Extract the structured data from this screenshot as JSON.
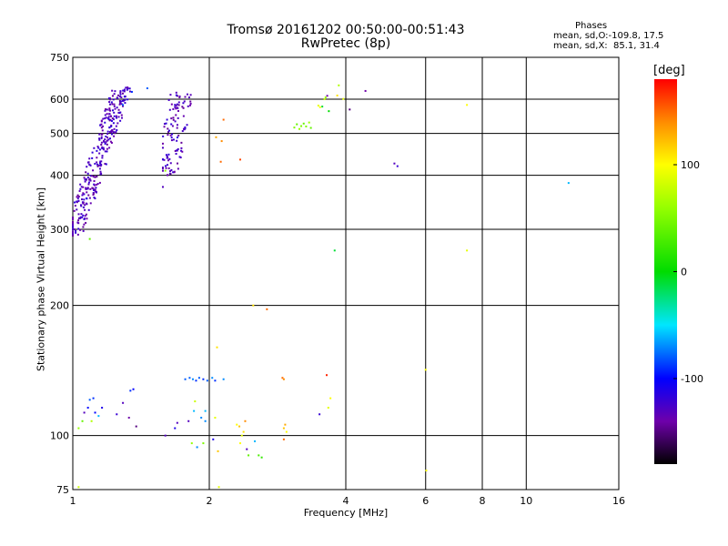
{
  "header": {
    "title_line1": "Tromsø 20161202 00:50:00-00:51:43",
    "title_line2": "RwPretec (8p)",
    "stats_title": "Phases",
    "stats_o": "mean, sd,O:-109.8, 17.5",
    "stats_x": "mean, sd,X:  85.1, 31.4"
  },
  "chart_data": {
    "type": "scatter",
    "xlabel": "Frequency [MHz]",
    "ylabel": "Stationary phase Virtual Height [km]",
    "xscale": "log",
    "yscale": "log",
    "xlim": [
      1,
      16
    ],
    "ylim": [
      75,
      750
    ],
    "xticks": [
      1,
      2,
      4,
      6,
      8,
      10,
      16
    ],
    "yticks": [
      75,
      100,
      200,
      300,
      400,
      500,
      600,
      750
    ],
    "grid": true,
    "colorbar": {
      "label": "[deg]",
      "range": [
        -180,
        180
      ],
      "ticks": [
        100,
        0,
        -100
      ],
      "position": "right"
    },
    "points": [
      {
        "x": 1.03,
        "y": 76,
        "phase": 80
      },
      {
        "x": 1.03,
        "y": 104,
        "phase": 60
      },
      {
        "x": 1.05,
        "y": 108,
        "phase": 40
      },
      {
        "x": 1.06,
        "y": 113,
        "phase": -130
      },
      {
        "x": 1.08,
        "y": 116,
        "phase": -100
      },
      {
        "x": 1.09,
        "y": 121,
        "phase": -80
      },
      {
        "x": 1.11,
        "y": 122,
        "phase": -90
      },
      {
        "x": 1.12,
        "y": 113,
        "phase": -100
      },
      {
        "x": 1.14,
        "y": 111,
        "phase": -60
      },
      {
        "x": 1.16,
        "y": 116,
        "phase": -110
      },
      {
        "x": 1.1,
        "y": 108,
        "phase": 70
      },
      {
        "x": 1.25,
        "y": 112,
        "phase": -120
      },
      {
        "x": 1.29,
        "y": 119,
        "phase": -130
      },
      {
        "x": 1.34,
        "y": 127,
        "phase": -90
      },
      {
        "x": 1.36,
        "y": 128,
        "phase": -100
      },
      {
        "x": 1.33,
        "y": 110,
        "phase": -140
      },
      {
        "x": 1.38,
        "y": 105,
        "phase": -150
      },
      {
        "x": 1.09,
        "y": 285,
        "phase": 40
      },
      {
        "x": 1.29,
        "y": 582,
        "phase": -80
      },
      {
        "x": 1.35,
        "y": 624,
        "phase": -90
      },
      {
        "x": 1.58,
        "y": 376,
        "phase": -130
      },
      {
        "x": 1.6,
        "y": 410,
        "phase": 60
      },
      {
        "x": 1.6,
        "y": 100,
        "phase": -130
      },
      {
        "x": 1.68,
        "y": 104,
        "phase": -110
      },
      {
        "x": 1.7,
        "y": 107,
        "phase": -130
      },
      {
        "x": 1.77,
        "y": 135,
        "phase": -80
      },
      {
        "x": 1.81,
        "y": 136,
        "phase": -80
      },
      {
        "x": 1.84,
        "y": 135,
        "phase": -70
      },
      {
        "x": 1.87,
        "y": 134,
        "phase": -90
      },
      {
        "x": 1.9,
        "y": 136,
        "phase": -80
      },
      {
        "x": 1.94,
        "y": 135,
        "phase": -90
      },
      {
        "x": 1.98,
        "y": 134,
        "phase": -80
      },
      {
        "x": 2.03,
        "y": 136,
        "phase": -70
      },
      {
        "x": 2.06,
        "y": 134,
        "phase": -90
      },
      {
        "x": 1.86,
        "y": 120,
        "phase": 80
      },
      {
        "x": 1.85,
        "y": 114,
        "phase": -60
      },
      {
        "x": 1.92,
        "y": 110,
        "phase": -70
      },
      {
        "x": 1.8,
        "y": 108,
        "phase": -130
      },
      {
        "x": 1.83,
        "y": 96,
        "phase": 60
      },
      {
        "x": 1.94,
        "y": 96,
        "phase": 50
      },
      {
        "x": 1.88,
        "y": 94,
        "phase": -70
      },
      {
        "x": 1.96,
        "y": 114,
        "phase": -60
      },
      {
        "x": 1.96,
        "y": 108,
        "phase": -70
      },
      {
        "x": 2.04,
        "y": 98,
        "phase": -110
      },
      {
        "x": 2.06,
        "y": 110,
        "phase": 90
      },
      {
        "x": 2.09,
        "y": 92,
        "phase": 120
      },
      {
        "x": 2.08,
        "y": 160,
        "phase": 110
      },
      {
        "x": 2.15,
        "y": 135,
        "phase": -70
      },
      {
        "x": 2.07,
        "y": 490,
        "phase": 130
      },
      {
        "x": 2.13,
        "y": 480,
        "phase": 140
      },
      {
        "x": 2.12,
        "y": 430,
        "phase": 150
      },
      {
        "x": 2.34,
        "y": 435,
        "phase": 160
      },
      {
        "x": 2.15,
        "y": 538,
        "phase": 150
      },
      {
        "x": 2.3,
        "y": 106,
        "phase": 100
      },
      {
        "x": 2.33,
        "y": 105,
        "phase": 120
      },
      {
        "x": 2.36,
        "y": 100,
        "phase": 90
      },
      {
        "x": 2.38,
        "y": 102,
        "phase": 110
      },
      {
        "x": 2.34,
        "y": 96,
        "phase": 100
      },
      {
        "x": 2.4,
        "y": 108,
        "phase": 140
      },
      {
        "x": 2.42,
        "y": 93,
        "phase": -130
      },
      {
        "x": 2.44,
        "y": 90,
        "phase": 40
      },
      {
        "x": 2.52,
        "y": 97,
        "phase": -60
      },
      {
        "x": 2.57,
        "y": 90,
        "phase": 30
      },
      {
        "x": 2.61,
        "y": 89,
        "phase": 20
      },
      {
        "x": 2.1,
        "y": 76,
        "phase": 90
      },
      {
        "x": 2.5,
        "y": 200,
        "phase": 110
      },
      {
        "x": 2.68,
        "y": 196,
        "phase": 150
      },
      {
        "x": 2.9,
        "y": 136,
        "phase": 150
      },
      {
        "x": 2.92,
        "y": 135,
        "phase": 140
      },
      {
        "x": 2.94,
        "y": 106,
        "phase": 130
      },
      {
        "x": 2.92,
        "y": 104,
        "phase": 120
      },
      {
        "x": 2.96,
        "y": 102,
        "phase": 100
      },
      {
        "x": 2.92,
        "y": 98,
        "phase": 150
      },
      {
        "x": 3.08,
        "y": 516,
        "phase": 50
      },
      {
        "x": 3.12,
        "y": 525,
        "phase": 40
      },
      {
        "x": 3.16,
        "y": 512,
        "phase": 60
      },
      {
        "x": 3.19,
        "y": 520,
        "phase": 50
      },
      {
        "x": 3.23,
        "y": 527,
        "phase": 40
      },
      {
        "x": 3.27,
        "y": 519,
        "phase": 50
      },
      {
        "x": 3.32,
        "y": 530,
        "phase": 60
      },
      {
        "x": 3.35,
        "y": 515,
        "phase": 40
      },
      {
        "x": 3.48,
        "y": 580,
        "phase": 90
      },
      {
        "x": 3.51,
        "y": 575,
        "phase": 100
      },
      {
        "x": 3.55,
        "y": 577,
        "phase": -10
      },
      {
        "x": 3.59,
        "y": 600,
        "phase": 80
      },
      {
        "x": 3.61,
        "y": 606,
        "phase": 60
      },
      {
        "x": 3.64,
        "y": 611,
        "phase": -140
      },
      {
        "x": 3.67,
        "y": 563,
        "phase": 0
      },
      {
        "x": 3.83,
        "y": 612,
        "phase": 110
      },
      {
        "x": 3.86,
        "y": 646,
        "phase": 70
      },
      {
        "x": 3.95,
        "y": 601,
        "phase": 90
      },
      {
        "x": 4.08,
        "y": 568,
        "phase": -150
      },
      {
        "x": 4.42,
        "y": 627,
        "phase": -140
      },
      {
        "x": 3.78,
        "y": 268,
        "phase": -10
      },
      {
        "x": 3.5,
        "y": 112,
        "phase": -120
      },
      {
        "x": 3.63,
        "y": 138,
        "phase": 170
      },
      {
        "x": 3.7,
        "y": 122,
        "phase": 100
      },
      {
        "x": 3.66,
        "y": 116,
        "phase": 90
      },
      {
        "x": 5.12,
        "y": 426,
        "phase": -130
      },
      {
        "x": 5.2,
        "y": 420,
        "phase": -120
      },
      {
        "x": 6.0,
        "y": 142,
        "phase": 100
      },
      {
        "x": 6.02,
        "y": 83,
        "phase": 100
      },
      {
        "x": 7.4,
        "y": 582,
        "phase": 100
      },
      {
        "x": 7.4,
        "y": 268,
        "phase": 90
      },
      {
        "x": 12.4,
        "y": 384,
        "phase": -60
      },
      {
        "x": 1.46,
        "y": 636,
        "phase": -80
      }
    ],
    "clusters": [
      {
        "x_range": [
          1.0,
          1.4
        ],
        "y_range": [
          290,
          640
        ],
        "phase": -130,
        "count": 320,
        "shape": "branch-low"
      },
      {
        "x_range": [
          1.58,
          1.82
        ],
        "y_range": [
          400,
          630
        ],
        "phase": -130,
        "count": 110,
        "shape": "branch-high"
      }
    ]
  }
}
